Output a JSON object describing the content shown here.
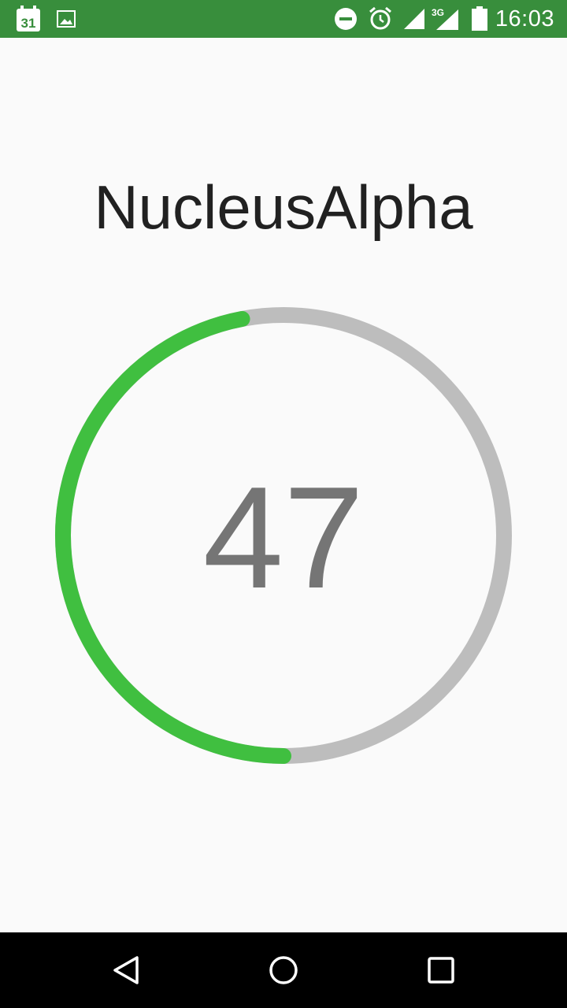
{
  "status_bar": {
    "time": "16:03",
    "calendar_day": "31",
    "network_type": "3G",
    "icons": [
      "calendar-icon",
      "image-icon",
      "do-not-disturb-icon",
      "alarm-icon",
      "signal-icon",
      "signal-3g-icon",
      "battery-icon"
    ]
  },
  "app": {
    "title": "NucleusAlpha"
  },
  "gauge": {
    "value": "47",
    "progress_fraction": 0.47,
    "progress_color": "#40bf40",
    "track_color": "#bdbdbd"
  },
  "nav_bar": {
    "buttons": [
      "back-button",
      "home-button",
      "recents-button"
    ]
  }
}
